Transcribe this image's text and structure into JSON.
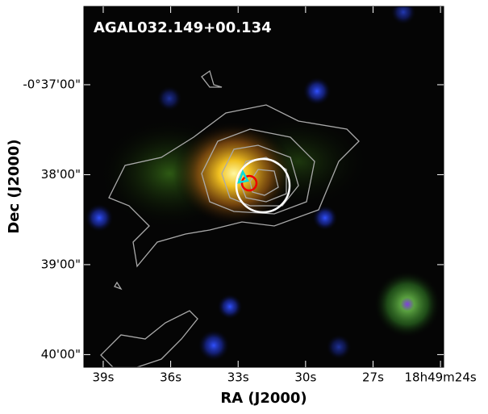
{
  "chart_data": {
    "type": "image",
    "title": "AGAL032.149+00.134",
    "xlabel": "RA (J2000)",
    "ylabel": "Dec (J2000)",
    "xlim": [
      39.86,
      23.86
    ],
    "ylim": [
      -36.13,
      -40.14
    ],
    "xticks": [
      {
        "value": 39,
        "label": "39s"
      },
      {
        "value": 36,
        "label": "36s"
      },
      {
        "value": 33,
        "label": "33s"
      },
      {
        "value": 30,
        "label": "30s"
      },
      {
        "value": 27,
        "label": "27s"
      },
      {
        "value": 24,
        "label": "18h49m24s"
      }
    ],
    "yticks": [
      {
        "value": -37,
        "label": "-0°37'00\""
      },
      {
        "value": -38,
        "label": "38'00\""
      },
      {
        "value": -39,
        "label": "39'00\""
      },
      {
        "value": -40,
        "label": "40'00\""
      }
    ]
  }
}
